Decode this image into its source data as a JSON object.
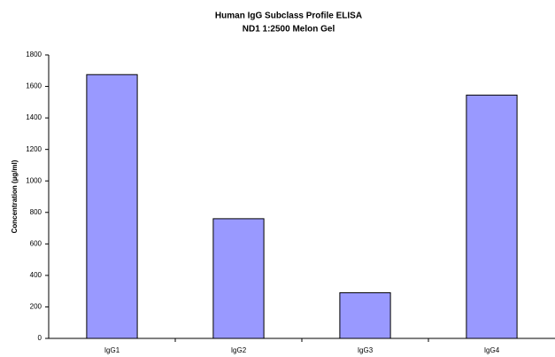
{
  "chart_data": {
    "type": "bar",
    "title": "Human IgG Subclass Profile ELISA",
    "subtitle": "ND1 1:2500 Melon Gel",
    "y_label": "Concentration (µg/ml)",
    "categories": [
      "IgG1",
      "IgG2",
      "IgG3",
      "IgG4"
    ],
    "values": [
      1675,
      760,
      290,
      1545
    ],
    "color": "#9999ff",
    "ylim": [
      0,
      1800
    ],
    "yticks": [
      0,
      200,
      400,
      600,
      800,
      1000,
      1200,
      1400,
      1600,
      1800
    ],
    "grid": false
  }
}
